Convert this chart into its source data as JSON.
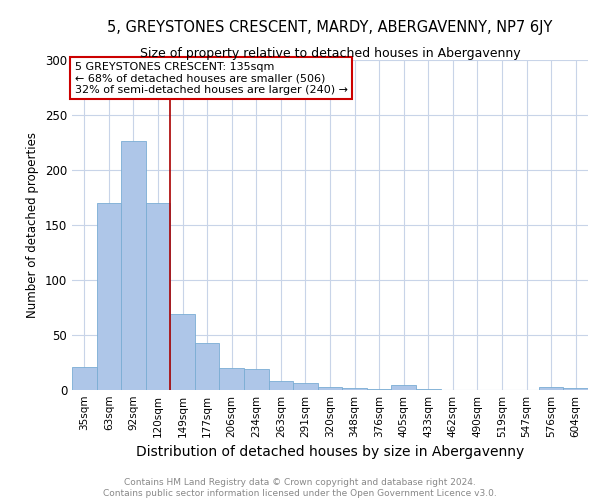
{
  "title": "5, GREYSTONES CRESCENT, MARDY, ABERGAVENNY, NP7 6JY",
  "subtitle": "Size of property relative to detached houses in Abergavenny",
  "xlabel": "Distribution of detached houses by size in Abergavenny",
  "ylabel": "Number of detached properties",
  "categories": [
    "35sqm",
    "63sqm",
    "92sqm",
    "120sqm",
    "149sqm",
    "177sqm",
    "206sqm",
    "234sqm",
    "263sqm",
    "291sqm",
    "320sqm",
    "348sqm",
    "376sqm",
    "405sqm",
    "433sqm",
    "462sqm",
    "490sqm",
    "519sqm",
    "547sqm",
    "576sqm",
    "604sqm"
  ],
  "values": [
    21,
    170,
    226,
    170,
    69,
    43,
    20,
    19,
    8,
    6,
    3,
    2,
    1,
    5,
    1,
    0,
    0,
    0,
    0,
    3,
    2
  ],
  "bar_color": "#aec6e8",
  "bar_edge_color": "#7aadd4",
  "vline_x": 3.5,
  "vline_color": "#aa0000",
  "annotation_text": "5 GREYSTONES CRESCENT: 135sqm\n← 68% of detached houses are smaller (506)\n32% of semi-detached houses are larger (240) →",
  "annotation_box_color": "#ffffff",
  "annotation_box_edge": "#cc0000",
  "footer": "Contains HM Land Registry data © Crown copyright and database right 2024.\nContains public sector information licensed under the Open Government Licence v3.0.",
  "ylim": [
    0,
    300
  ],
  "background_color": "#ffffff",
  "grid_color": "#c8d4e8",
  "title_fontsize": 10.5,
  "subtitle_fontsize": 9,
  "ylabel_fontsize": 8.5,
  "xlabel_fontsize": 10,
  "tick_fontsize": 7.5,
  "footer_fontsize": 6.5,
  "annotation_fontsize": 8
}
